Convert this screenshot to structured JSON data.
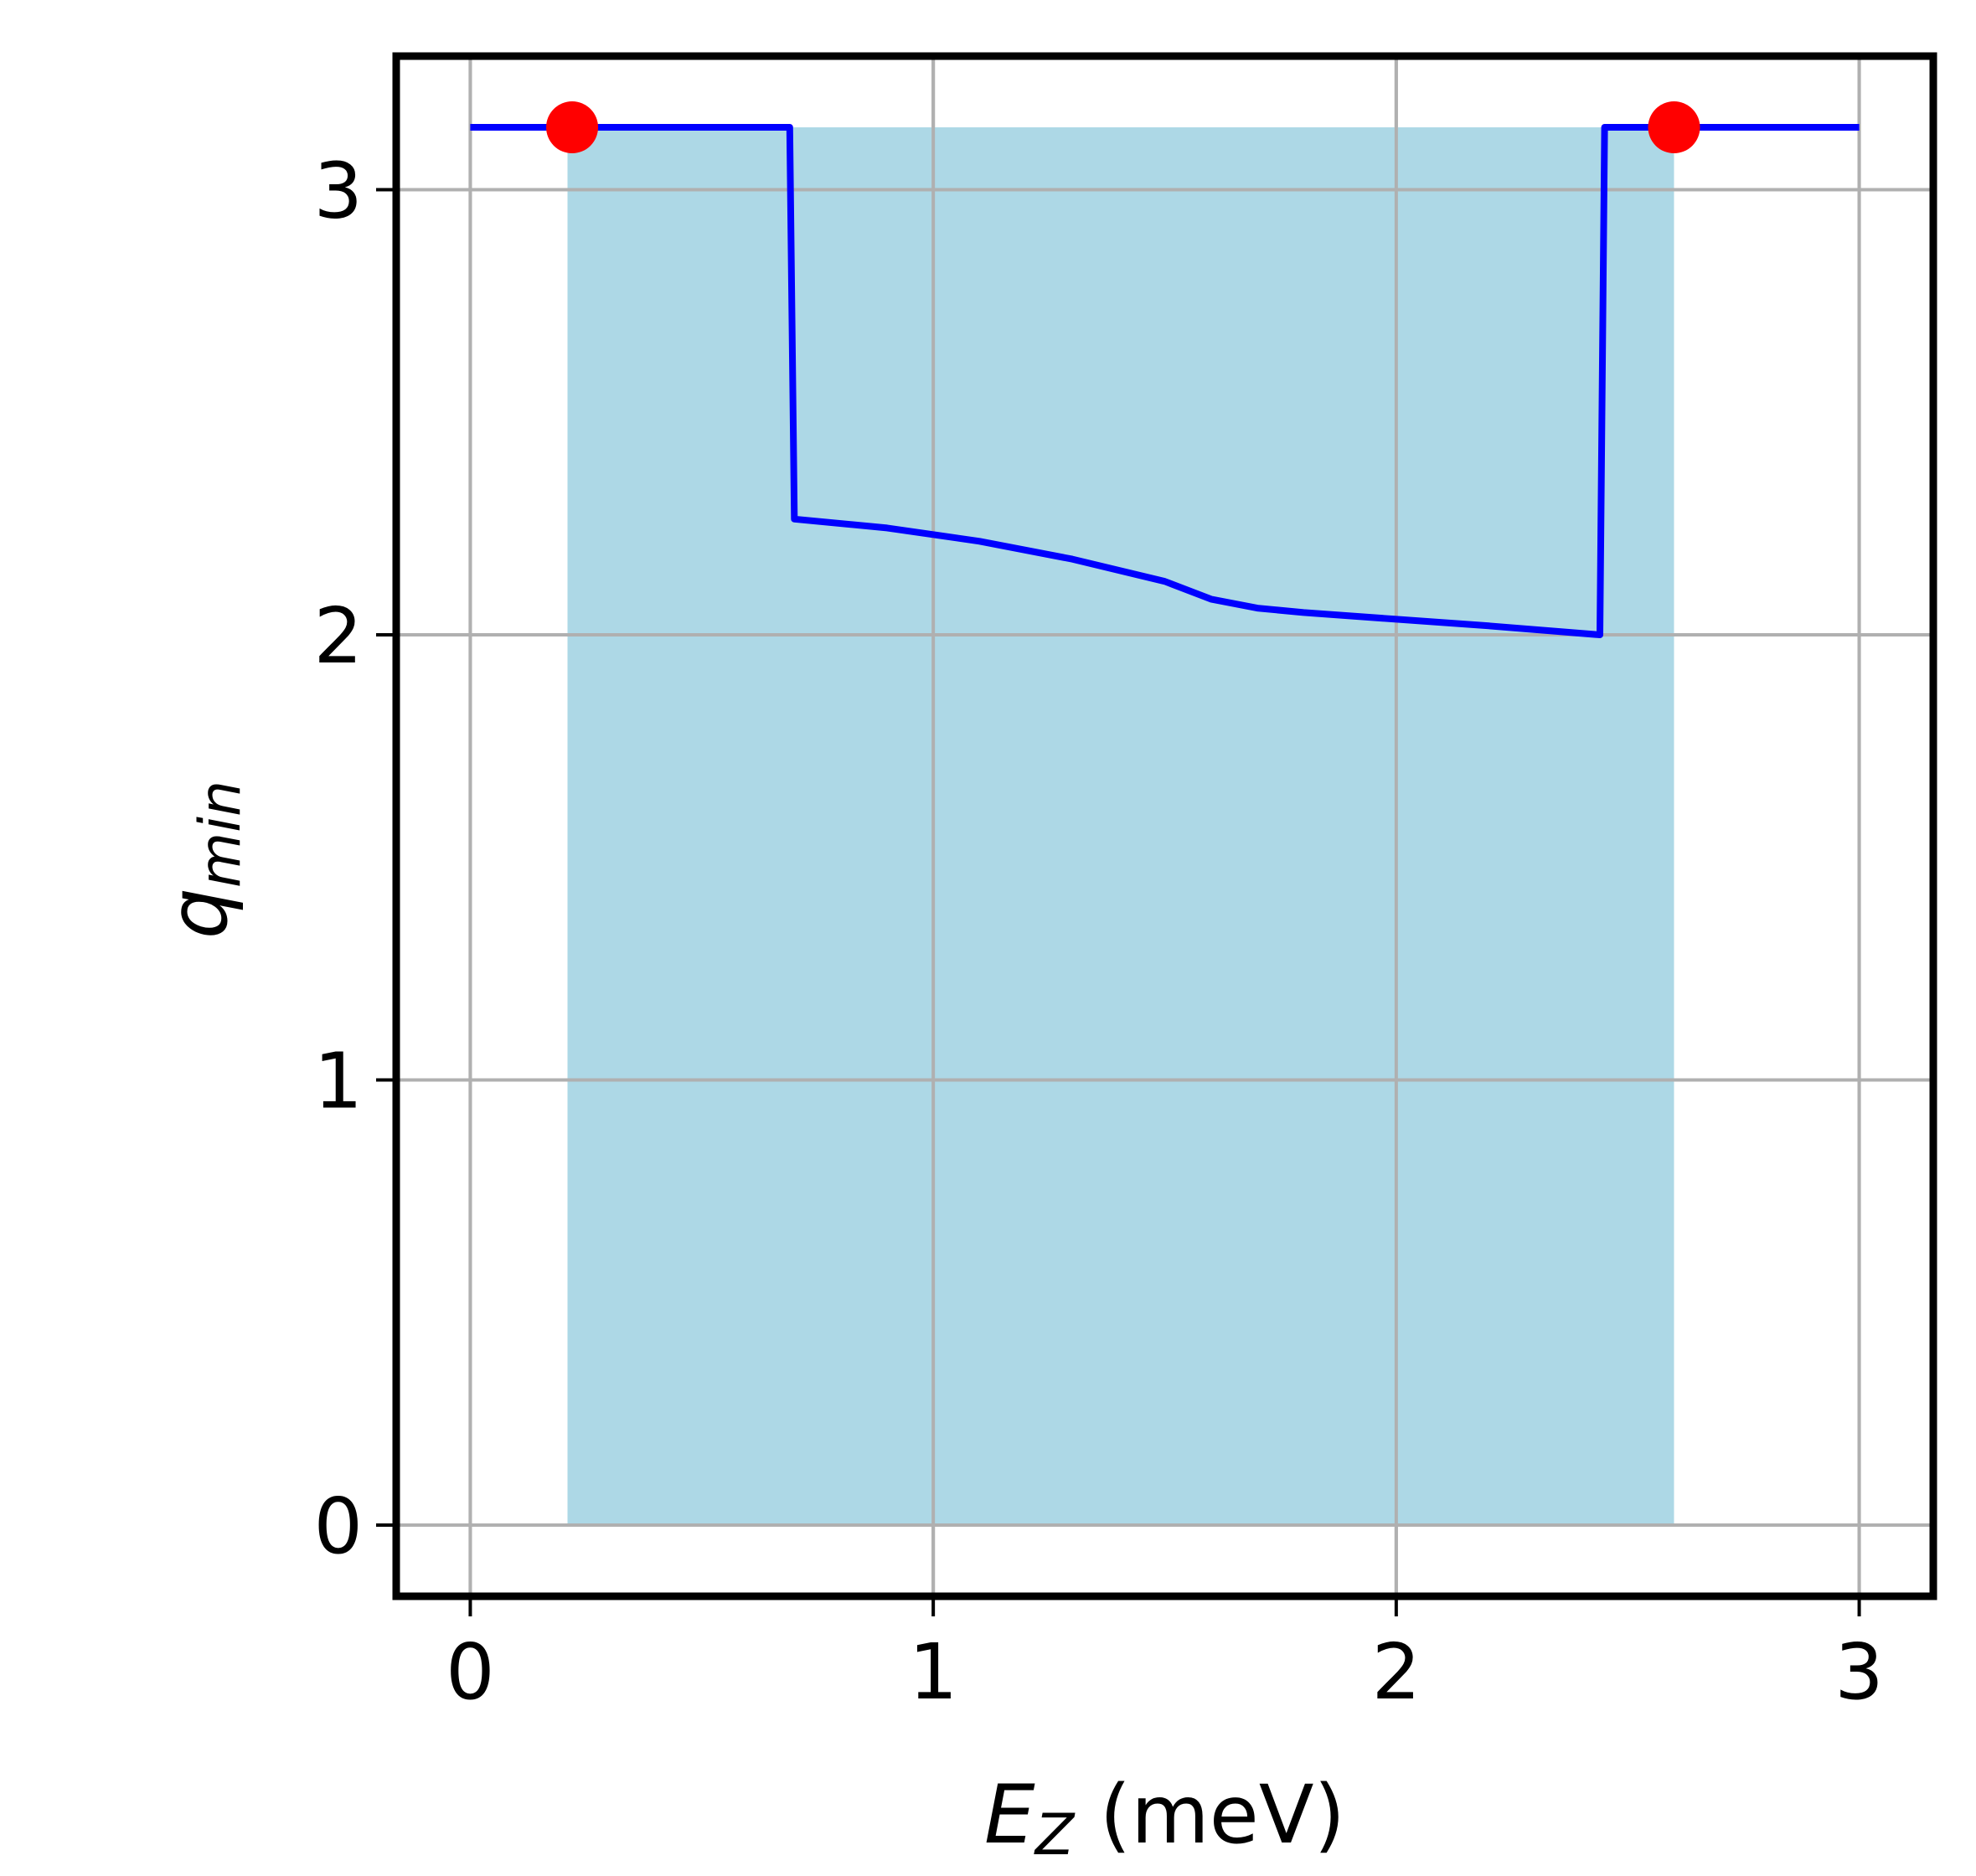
{
  "chart_data": {
    "type": "line",
    "xlabel": {
      "symbol": "E",
      "subscript": "Z",
      "unit": " (meV)"
    },
    "ylabel": {
      "symbol": "q",
      "subscript": "min"
    },
    "xlim": [
      -0.16,
      3.16
    ],
    "ylim": [
      -0.16,
      3.3
    ],
    "xticks": [
      0,
      1,
      2,
      3
    ],
    "yticks": [
      0,
      1,
      2,
      3
    ],
    "grid": true,
    "colors": {
      "line": "#0000ff",
      "fill": "#add8e6",
      "markers": "#ff0000",
      "grid": "#b0b0b0",
      "frame": "#000000"
    },
    "shaded_region": {
      "x_start": 0.21,
      "x_end": 2.6,
      "y_bottom": 0,
      "y_top": 3.14
    },
    "series": [
      {
        "x": [
          0,
          0.69,
          0.7,
          0.9,
          1.1,
          1.3,
          1.5,
          1.6,
          1.7,
          1.8,
          2.0,
          2.2,
          2.44,
          2.45,
          3.0
        ],
        "y": [
          3.14,
          3.14,
          2.26,
          2.24,
          2.21,
          2.17,
          2.12,
          2.08,
          2.06,
          2.05,
          2.035,
          2.02,
          2.0,
          3.14,
          3.14
        ]
      }
    ],
    "markers": [
      {
        "x": 0.22,
        "y": 3.14
      },
      {
        "x": 2.6,
        "y": 3.14
      }
    ]
  }
}
